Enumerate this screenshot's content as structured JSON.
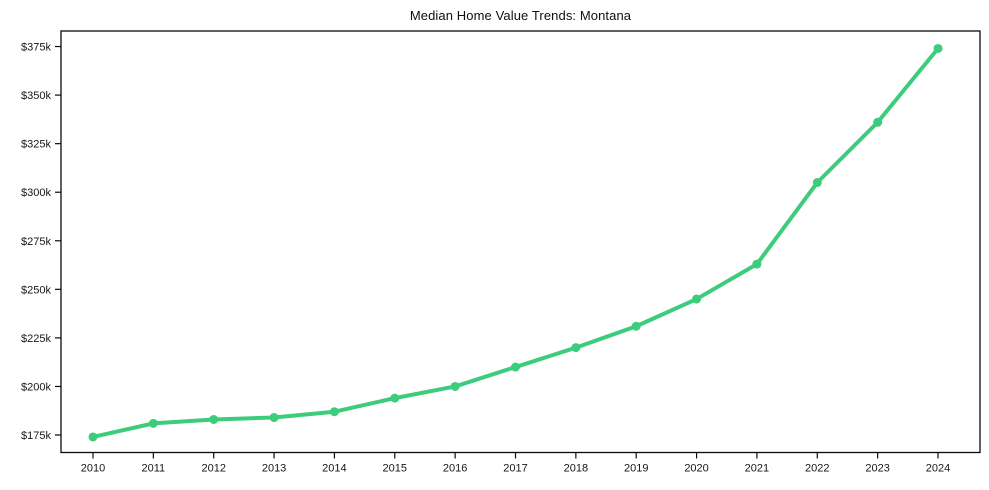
{
  "chart_data": {
    "type": "line",
    "title": "Median Home Value Trends: Montana",
    "units": "USD thousands",
    "x": [
      2010,
      2011,
      2012,
      2013,
      2014,
      2015,
      2016,
      2017,
      2018,
      2019,
      2020,
      2021,
      2022,
      2023,
      2024
    ],
    "x_tick_labels": [
      "2010",
      "2011",
      "2012",
      "2013",
      "2014",
      "2015",
      "2016",
      "2017",
      "2018",
      "2019",
      "2020",
      "2021",
      "2022",
      "2023",
      "2024"
    ],
    "values_k": [
      174,
      181,
      183,
      184,
      187,
      194,
      200,
      210,
      220,
      231,
      245,
      263,
      305,
      336,
      374
    ],
    "y_ticks_k": [
      175,
      200,
      225,
      250,
      275,
      300,
      325,
      350,
      375
    ],
    "y_tick_labels": [
      "$175k",
      "$200k",
      "$225k",
      "$250k",
      "$275k",
      "$300k",
      "$325k",
      "$350k",
      "$375k"
    ],
    "ylim_k": [
      166,
      383
    ],
    "xlabel": "",
    "ylabel": "",
    "grid": false,
    "legend": "none",
    "line_color": "#3dcc7c",
    "marker": "circle",
    "frame_color": "#0a0a12",
    "tick_label_color": "#16161e",
    "background": "#ffffff"
  }
}
